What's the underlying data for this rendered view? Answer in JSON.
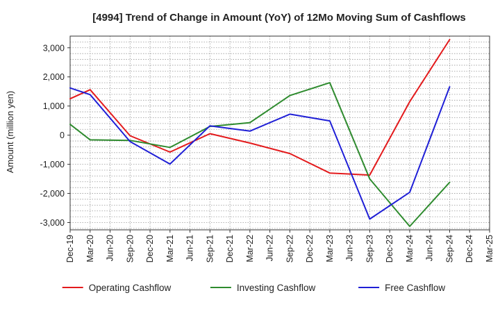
{
  "chart_data": {
    "type": "line",
    "title": "[4994]  Trend of Change in Amount (YoY) of 12Mo Moving Sum of Cashflows",
    "xlabel": "",
    "ylabel": "Amount (million yen)",
    "categories": [
      "Dec-19",
      "Mar-20",
      "Jun-20",
      "Sep-20",
      "Dec-20",
      "Mar-21",
      "Jun-21",
      "Sep-21",
      "Dec-21",
      "Mar-22",
      "Jun-22",
      "Sep-22",
      "Dec-22",
      "Mar-23",
      "Jun-23",
      "Sep-23",
      "Dec-23",
      "Mar-24",
      "Jun-24",
      "Sep-24",
      "Dec-24",
      "Mar-25"
    ],
    "ylim": [
      -3250,
      3400
    ],
    "yticks": [
      -3000,
      -2000,
      -1000,
      0,
      1000,
      2000,
      3000
    ],
    "ytick_labels": [
      "-3,000",
      "-2,000",
      "-1,000",
      "0",
      "1,000",
      "2,000",
      "3,000"
    ],
    "grid": true,
    "legend_position": "bottom",
    "series": [
      {
        "name": "Operating Cashflow",
        "color": "#e31a1c",
        "values": [
          1250,
          1560,
          null,
          -20,
          null,
          -580,
          null,
          50,
          null,
          -270,
          null,
          -630,
          null,
          -1300,
          null,
          -1370,
          null,
          1150,
          null,
          3280,
          null,
          null
        ]
      },
      {
        "name": "Investing Cashflow",
        "color": "#2e8b2e",
        "values": [
          370,
          -160,
          null,
          -180,
          null,
          -420,
          null,
          300,
          null,
          430,
          null,
          1360,
          null,
          1800,
          null,
          -1500,
          null,
          -3130,
          null,
          -1620,
          null,
          null
        ]
      },
      {
        "name": "Free Cashflow",
        "color": "#1f1fd6",
        "values": [
          1620,
          1390,
          null,
          -220,
          null,
          -990,
          null,
          320,
          null,
          140,
          null,
          720,
          null,
          490,
          null,
          -2880,
          null,
          -1960,
          null,
          1660,
          null,
          null
        ]
      }
    ]
  }
}
